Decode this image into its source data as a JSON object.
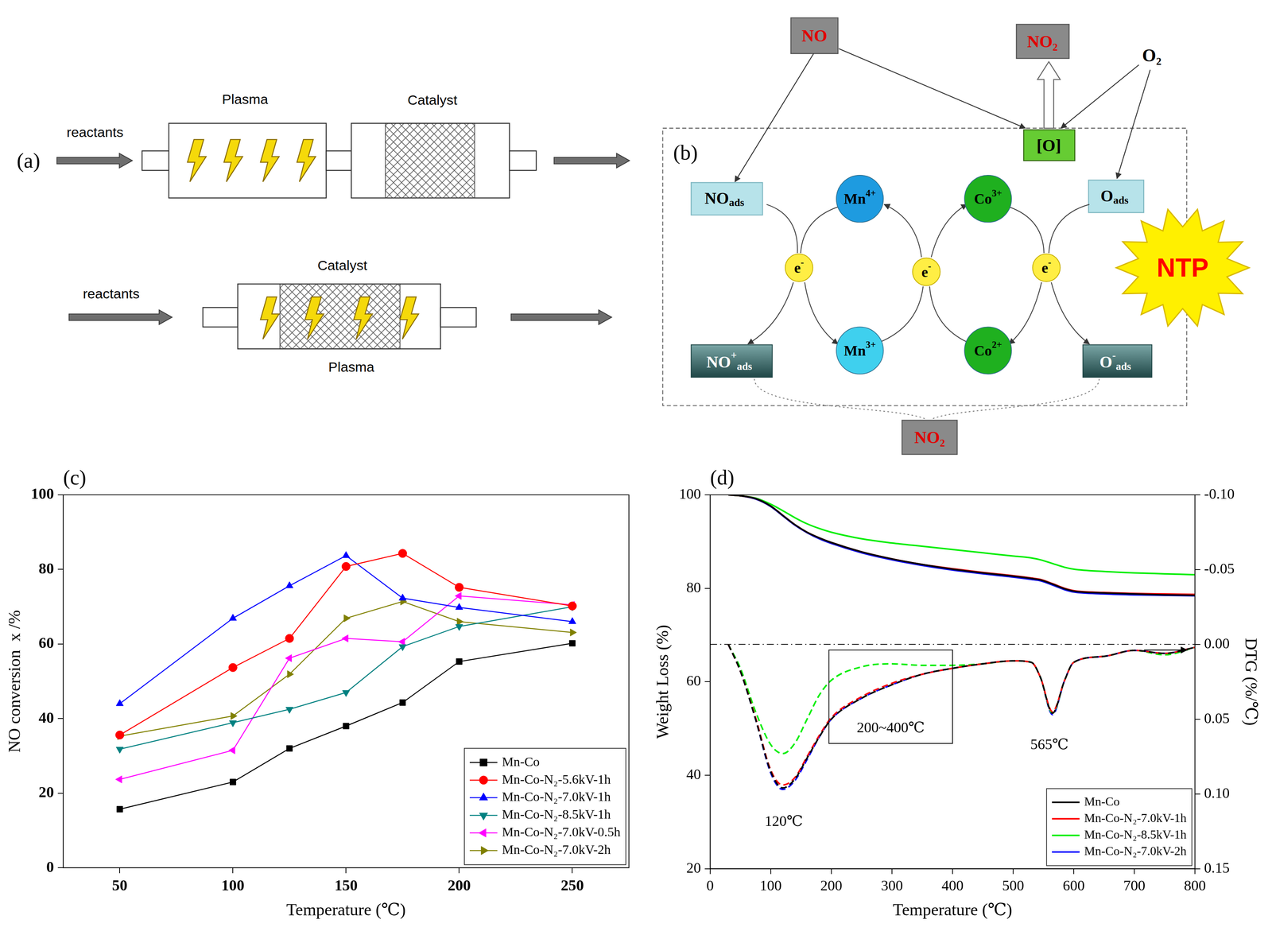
{
  "diagrams": {
    "a": {
      "label": "(a)",
      "sequential": {
        "inlet": "reactants",
        "stages": [
          "Plasma",
          "Catalyst"
        ]
      },
      "in_plasma": {
        "inlet": "reactants",
        "catalyst": "Catalyst",
        "plasma": "Plasma"
      }
    },
    "b": {
      "label": "(b)",
      "no": "NO",
      "no2_top": "NO₂",
      "o2": "O₂",
      "o_active": "[O]",
      "no_ads": {
        "text": "NO",
        "sub": "ads"
      },
      "o_ads": {
        "text": "O",
        "sub": "ads"
      },
      "no_plus_ads": {
        "text": "NO",
        "sup": "+",
        "sub": "ads"
      },
      "o_minus_ads": {
        "text": "O",
        "sup": "-",
        "sub": "ads"
      },
      "mn_high": {
        "text": "Mn",
        "sup": "4+"
      },
      "mn_low": {
        "text": "Mn",
        "sup": "3+"
      },
      "co_high": {
        "text": "Co",
        "sup": "3+"
      },
      "co_low": {
        "text": "Co",
        "sup": "2+"
      },
      "electron": {
        "text": "e",
        "sup": "-"
      },
      "ntp": "NTP",
      "no2_bottom": "NO₂"
    }
  },
  "chart_data": [
    {
      "type": "line",
      "title": "(c)",
      "x_label": "Temperature (℃)",
      "y_label": "NO conversion  x /%",
      "x": [
        50,
        100,
        125,
        150,
        175,
        200,
        250
      ],
      "xlim": [
        25,
        275
      ],
      "xticks": [
        50,
        100,
        150,
        200,
        250
      ],
      "ylim": [
        0,
        100
      ],
      "yticks": [
        0,
        20,
        40,
        60,
        80,
        100
      ],
      "grid": false,
      "legend": "lower right",
      "series": [
        {
          "name": "Mn-Co",
          "color": "#000000",
          "marker": "square",
          "line_style": "solid",
          "values": [
            15.7,
            23.0,
            32.0,
            38.0,
            44.3,
            55.3,
            60.2
          ]
        },
        {
          "name": "Mn-Co-N₂-5.6kV-1h",
          "color": "#ff0000",
          "marker": "circle",
          "line_style": "solid",
          "values": [
            35.6,
            53.7,
            61.5,
            80.8,
            84.3,
            75.2,
            70.2
          ]
        },
        {
          "name": "Mn-Co-N₂-7.0kV-1h",
          "color": "#0000ff",
          "marker": "triangle-up",
          "line_style": "solid",
          "values": [
            44.0,
            66.9,
            75.6,
            83.7,
            72.3,
            69.8,
            66.0
          ]
        },
        {
          "name": "Mn-Co-N₂-8.5kV-1h",
          "color": "#008080",
          "marker": "triangle-down",
          "line_style": "solid",
          "values": [
            31.8,
            38.9,
            42.5,
            47.0,
            59.3,
            64.7,
            70.0
          ]
        },
        {
          "name": "Mn-Co-N₂-7.0kV-0.5h",
          "color": "#ff00ff",
          "marker": "triangle-left",
          "line_style": "solid",
          "values": [
            23.7,
            31.5,
            56.2,
            61.5,
            60.6,
            72.9,
            70.5
          ]
        },
        {
          "name": "Mn-Co-N₂-7.0kV-2h",
          "color": "#808000",
          "marker": "triangle-right",
          "line_style": "solid",
          "values": [
            35.3,
            40.7,
            51.9,
            66.9,
            71.4,
            66.0,
            63.1
          ]
        }
      ]
    },
    {
      "type": "line",
      "title": "(d)",
      "x_label": "Temperature (℃)",
      "y_label": "Weight Loss (%)",
      "y2_label": "DTG (%/℃)",
      "x": [
        30,
        50,
        75,
        100,
        120,
        140,
        160,
        180,
        200,
        250,
        300,
        350,
        400,
        450,
        500,
        530,
        545,
        565,
        585,
        600,
        650,
        700,
        750,
        800
      ],
      "xlim": [
        0,
        800
      ],
      "xticks": [
        0,
        100,
        200,
        300,
        400,
        500,
        600,
        700,
        800
      ],
      "ylim": [
        20,
        100
      ],
      "yticks": [
        20,
        40,
        60,
        80,
        100
      ],
      "y2lim": [
        0.15,
        -0.1
      ],
      "y2ticks": [
        {
          "value": -0.1,
          "label": "-0.10"
        },
        {
          "value": -0.05,
          "label": "-0.05"
        },
        {
          "value": 0,
          "label": "0.00"
        },
        {
          "value": 0.05,
          "label": "0.05"
        },
        {
          "value": 0.1,
          "label": "0.10"
        },
        {
          "value": 0.15,
          "label": "0.15"
        }
      ],
      "grid": false,
      "legend": "lower right",
      "annotations": [
        "120℃",
        "200~400℃",
        "565℃"
      ],
      "series": [
        {
          "name": "Mn-Co",
          "color": "#000000",
          "line_style": "solid",
          "values": [
            100,
            99.8,
            99.2,
            97.6,
            95.6,
            93.6,
            92.0,
            90.8,
            89.8,
            87.8,
            86.3,
            85.1,
            84.1,
            83.3,
            82.6,
            82.1,
            81.8,
            80.9,
            79.9,
            79.4,
            79.0,
            78.8,
            78.6,
            78.5
          ]
        },
        {
          "name": "Mn-Co-N₂-7.0kV-1h",
          "color": "#ff0000",
          "line_style": "solid",
          "values": [
            100,
            99.8,
            99.2,
            97.6,
            95.6,
            93.6,
            92.0,
            90.8,
            89.8,
            87.8,
            86.3,
            85.1,
            84.2,
            83.4,
            82.7,
            82.2,
            81.9,
            81.0,
            80.0,
            79.5,
            79.1,
            78.9,
            78.8,
            78.7
          ]
        },
        {
          "name": "Mn-Co-N₂-8.5kV-1h",
          "color": "#00ee00",
          "line_style": "solid",
          "values": [
            100,
            99.8,
            99.3,
            98.0,
            96.6,
            95.1,
            93.8,
            92.8,
            92.0,
            90.6,
            89.7,
            89.0,
            88.3,
            87.6,
            86.9,
            86.5,
            86.1,
            85.3,
            84.5,
            84.1,
            83.6,
            83.3,
            83.1,
            82.9
          ]
        },
        {
          "name": "Mn-Co-N₂-7.0kV-2h",
          "color": "#0000ff",
          "line_style": "solid",
          "values": [
            100,
            99.8,
            99.1,
            97.5,
            95.5,
            93.5,
            91.9,
            90.6,
            89.6,
            87.6,
            86.1,
            84.9,
            83.9,
            83.1,
            82.4,
            81.9,
            81.6,
            80.7,
            79.7,
            79.2,
            78.8,
            78.6,
            78.5,
            78.4
          ]
        },
        {
          "name": "Mn-Co",
          "color": "#000000",
          "axis": "y2",
          "line_style": "dashed",
          "values": [
            0,
            0.018,
            0.05,
            0.085,
            0.096,
            0.09,
            0.076,
            0.062,
            0.05,
            0.036,
            0.027,
            0.02,
            0.016,
            0.013,
            0.011,
            0.012,
            0.022,
            0.046,
            0.024,
            0.012,
            0.008,
            0.004,
            0.006,
            0.002
          ]
        },
        {
          "name": "Mn-Co-N₂-7.0kV-1h",
          "color": "#ff0000",
          "axis": "y2",
          "line_style": "dashed",
          "values": [
            0,
            0.018,
            0.049,
            0.084,
            0.094,
            0.089,
            0.075,
            0.061,
            0.049,
            0.035,
            0.026,
            0.02,
            0.016,
            0.013,
            0.011,
            0.012,
            0.022,
            0.045,
            0.024,
            0.012,
            0.008,
            0.004,
            0.006,
            0.002
          ]
        },
        {
          "name": "Mn-Co-N₂-8.5kV-1h",
          "color": "#00ee00",
          "axis": "y2",
          "line_style": "dashed",
          "values": [
            0,
            0.016,
            0.045,
            0.067,
            0.073,
            0.066,
            0.05,
            0.034,
            0.024,
            0.015,
            0.013,
            0.014,
            0.014,
            0.013,
            0.011,
            0.012,
            0.022,
            0.046,
            0.024,
            0.012,
            0.008,
            0.004,
            0.007,
            0.002
          ]
        },
        {
          "name": "Mn-Co-N₂-7.0kV-2h",
          "color": "#0000ff",
          "axis": "y2",
          "line_style": "dashed",
          "values": [
            0,
            0.018,
            0.05,
            0.086,
            0.097,
            0.091,
            0.077,
            0.062,
            0.05,
            0.036,
            0.027,
            0.02,
            0.016,
            0.013,
            0.011,
            0.012,
            0.022,
            0.047,
            0.024,
            0.012,
            0.008,
            0.004,
            0.006,
            0.002
          ]
        }
      ]
    }
  ]
}
